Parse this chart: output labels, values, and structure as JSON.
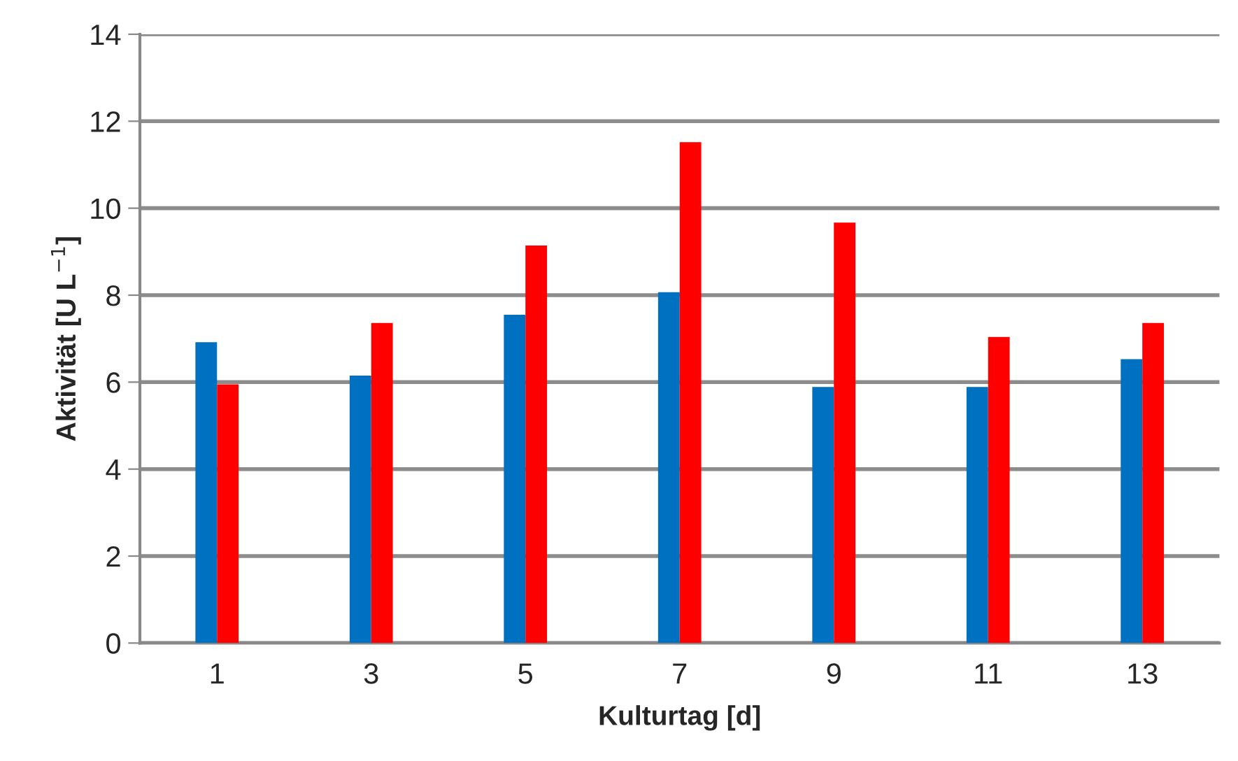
{
  "chart_data": {
    "type": "bar",
    "xlabel": "Kulturtag [d]",
    "ylabel": "Aktivität [U L$^{−1}$]",
    "categories": [
      "1",
      "3",
      "5",
      "7",
      "9",
      "11",
      "13"
    ],
    "series": [
      {
        "color": "#0070c0",
        "values": [
          6.92,
          6.15,
          7.55,
          8.07,
          5.89,
          5.89,
          6.53
        ]
      },
      {
        "color": "#ff0000",
        "values": [
          5.95,
          7.36,
          9.14,
          11.52,
          9.67,
          7.04,
          7.36
        ]
      }
    ],
    "ylim": [
      0,
      14
    ],
    "yticks": [
      0,
      2,
      4,
      6,
      8,
      10,
      12,
      14
    ],
    "grid": "y",
    "legend": false
  }
}
